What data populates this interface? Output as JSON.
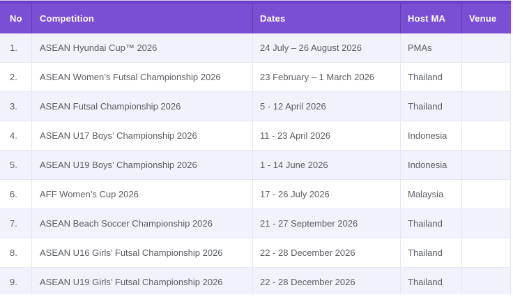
{
  "theme": {
    "header_bg": "#7a4fd4",
    "header_top_strip": "#6b3ec6",
    "page_top_line": "#d9d3ef",
    "header_divider": "rgba(35, 8, 85, 0.28)",
    "header_text": "#ffffff",
    "row_bg": "#ffffff",
    "row_alt_bg": "#f1f2fb",
    "grid_line": "#e4e6f1",
    "cell_text": "#5b5e63"
  },
  "table": {
    "columns": [
      {
        "key": "no",
        "label": "No"
      },
      {
        "key": "competition",
        "label": "Competition"
      },
      {
        "key": "dates",
        "label": "Dates"
      },
      {
        "key": "host",
        "label": "Host MA"
      },
      {
        "key": "venue",
        "label": "Venue"
      }
    ],
    "rows": [
      {
        "no": "1.",
        "competition": "ASEAN Hyundai Cup™ 2026",
        "dates": "24 July – 26 August 2026",
        "host": "PMAs",
        "venue": ""
      },
      {
        "no": "2.",
        "competition": "ASEAN Women’s Futsal Championship 2026",
        "dates": "23 February – 1 March 2026",
        "host": "Thailand",
        "venue": ""
      },
      {
        "no": "3.",
        "competition": "ASEAN Futsal Championship 2026",
        "dates": "5 - 12 April 2026",
        "host": "Thailand",
        "venue": ""
      },
      {
        "no": "4.",
        "competition": "ASEAN U17 Boys’ Championship 2026",
        "dates": "11 - 23 April 2026",
        "host": "Indonesia",
        "venue": ""
      },
      {
        "no": "5.",
        "competition": "ASEAN U19 Boys’ Championship 2026",
        "dates": "1 - 14 June 2026",
        "host": "Indonesia",
        "venue": ""
      },
      {
        "no": "6.",
        "competition": "AFF Women’s Cup 2026",
        "dates": "17 - 26 July 2026",
        "host": "Malaysia",
        "venue": ""
      },
      {
        "no": "7.",
        "competition": "ASEAN Beach Soccer Championship 2026",
        "dates": "21 - 27 September 2026",
        "host": "Thailand",
        "venue": ""
      },
      {
        "no": "8.",
        "competition": "ASEAN U16 Girls’ Futsal Championship 2026",
        "dates": "22 - 28 December 2026",
        "host": "Thailand",
        "venue": ""
      },
      {
        "no": "9.",
        "competition": "ASEAN U19 Girls’ Futsal Championship 2026",
        "dates": "22 - 28 December 2026",
        "host": "Thailand",
        "venue": ""
      }
    ]
  }
}
